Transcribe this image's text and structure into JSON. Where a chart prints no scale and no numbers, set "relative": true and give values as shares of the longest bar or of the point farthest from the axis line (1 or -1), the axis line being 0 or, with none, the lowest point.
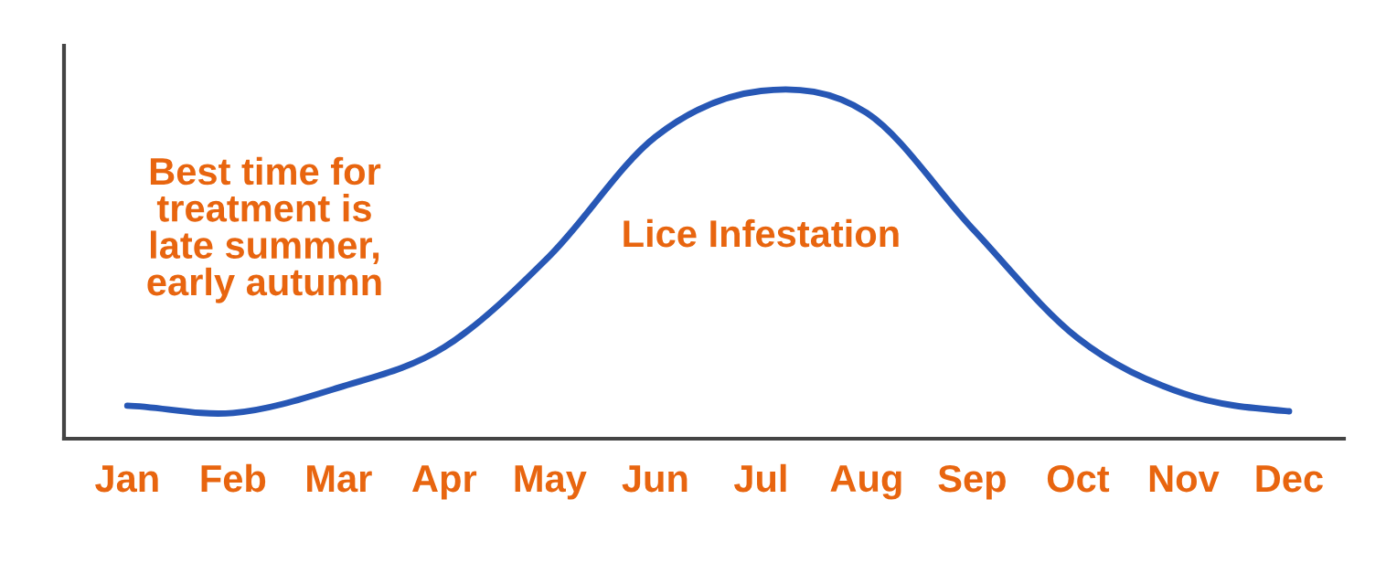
{
  "chart_data": {
    "type": "line",
    "relative": true,
    "categories": [
      "Jan",
      "Feb",
      "Mar",
      "Apr",
      "May",
      "Jun",
      "Jul",
      "Aug",
      "Sep",
      "Oct",
      "Nov",
      "Dec"
    ],
    "series": [
      {
        "color": "#2757b5",
        "values": [
          0.095,
          0.074,
          0.147,
          0.263,
          0.526,
          0.868,
          1.0,
          0.937,
          0.605,
          0.289,
          0.13,
          0.079
        ]
      }
    ],
    "annotations": [
      "Best time for\ntreatment is\nlate summer,\nearly autumn",
      "Lice Infestation"
    ],
    "grid": false,
    "marker": "none",
    "line_style": "solid"
  }
}
